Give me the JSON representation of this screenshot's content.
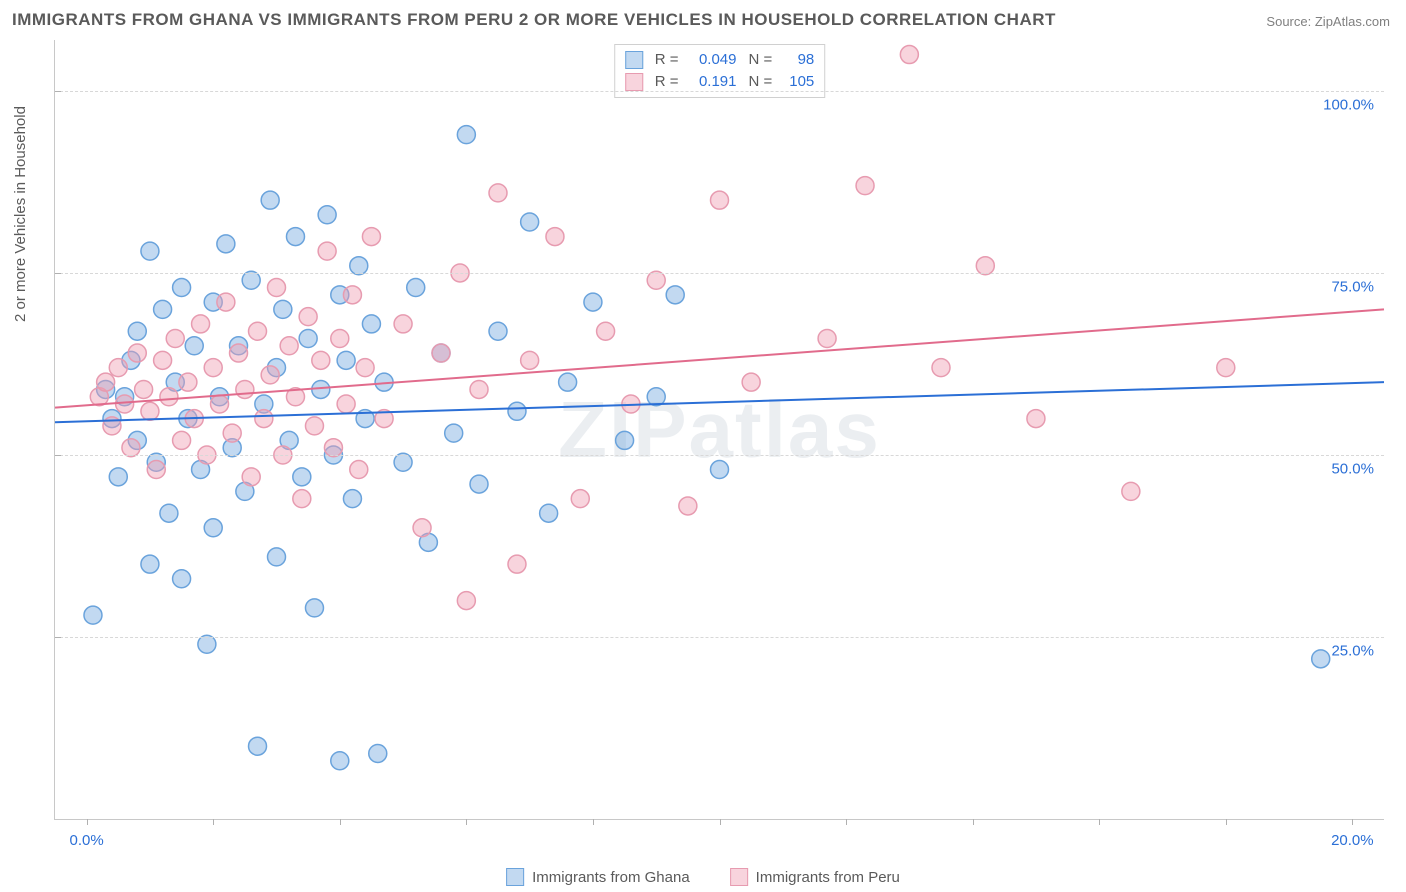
{
  "title": "IMMIGRANTS FROM GHANA VS IMMIGRANTS FROM PERU 2 OR MORE VEHICLES IN HOUSEHOLD CORRELATION CHART",
  "source_label": "Source:",
  "source_value": "ZipAtlas.com",
  "y_axis_title": "2 or more Vehicles in Household",
  "watermark": "ZIPatlas",
  "chart": {
    "type": "scatter",
    "x_domain": [
      -0.5,
      20.5
    ],
    "y_domain": [
      0,
      107
    ],
    "x_ticks": [
      0,
      2,
      4,
      6,
      8,
      10,
      12,
      14,
      16,
      18,
      20
    ],
    "x_tick_labels_shown": {
      "0": "0.0%",
      "20": "20.0%"
    },
    "y_gridlines": [
      25,
      50,
      75,
      100
    ],
    "y_tick_labels": {
      "25": "25.0%",
      "50": "50.0%",
      "75": "75.0%",
      "100": "100.0%"
    },
    "axis_label_color": "#2b6fd6",
    "grid_color": "#d8d8d8",
    "background_color": "#ffffff",
    "marker_radius": 9,
    "marker_stroke_width": 1.5,
    "line_width": 2
  },
  "series": [
    {
      "id": "ghana",
      "label": "Immigrants from Ghana",
      "fill_color": "rgba(120,170,225,0.45)",
      "stroke_color": "#6aa3dc",
      "line_color": "#2b6fd6",
      "R": "0.049",
      "N": "98",
      "trend": {
        "x1": -0.5,
        "y1": 54.5,
        "x2": 20.5,
        "y2": 60.0
      },
      "points": [
        [
          0.1,
          28
        ],
        [
          0.3,
          59
        ],
        [
          0.4,
          55
        ],
        [
          0.5,
          47
        ],
        [
          0.6,
          58
        ],
        [
          0.7,
          63
        ],
        [
          0.8,
          52
        ],
        [
          0.8,
          67
        ],
        [
          1.0,
          35
        ],
        [
          1.0,
          78
        ],
        [
          1.1,
          49
        ],
        [
          1.2,
          70
        ],
        [
          1.3,
          42
        ],
        [
          1.4,
          60
        ],
        [
          1.5,
          73
        ],
        [
          1.5,
          33
        ],
        [
          1.6,
          55
        ],
        [
          1.7,
          65
        ],
        [
          1.8,
          48
        ],
        [
          1.9,
          24
        ],
        [
          2.0,
          71
        ],
        [
          2.0,
          40
        ],
        [
          2.1,
          58
        ],
        [
          2.2,
          79
        ],
        [
          2.3,
          51
        ],
        [
          2.4,
          65
        ],
        [
          2.5,
          45
        ],
        [
          2.6,
          74
        ],
        [
          2.7,
          10
        ],
        [
          2.8,
          57
        ],
        [
          2.9,
          85
        ],
        [
          3.0,
          62
        ],
        [
          3.0,
          36
        ],
        [
          3.1,
          70
        ],
        [
          3.2,
          52
        ],
        [
          3.3,
          80
        ],
        [
          3.4,
          47
        ],
        [
          3.5,
          66
        ],
        [
          3.6,
          29
        ],
        [
          3.7,
          59
        ],
        [
          3.8,
          83
        ],
        [
          3.9,
          50
        ],
        [
          4.0,
          72
        ],
        [
          4.0,
          8
        ],
        [
          4.1,
          63
        ],
        [
          4.2,
          44
        ],
        [
          4.3,
          76
        ],
        [
          4.4,
          55
        ],
        [
          4.5,
          68
        ],
        [
          4.6,
          9
        ],
        [
          4.7,
          60
        ],
        [
          5.0,
          49
        ],
        [
          5.2,
          73
        ],
        [
          5.4,
          38
        ],
        [
          5.6,
          64
        ],
        [
          5.8,
          53
        ],
        [
          6.0,
          94
        ],
        [
          6.2,
          46
        ],
        [
          6.5,
          67
        ],
        [
          6.8,
          56
        ],
        [
          7.0,
          82
        ],
        [
          7.3,
          42
        ],
        [
          7.6,
          60
        ],
        [
          8.0,
          71
        ],
        [
          8.5,
          52
        ],
        [
          9.0,
          58
        ],
        [
          9.3,
          72
        ],
        [
          10.0,
          48
        ],
        [
          19.5,
          22
        ]
      ]
    },
    {
      "id": "peru",
      "label": "Immigrants from Peru",
      "fill_color": "rgba(240,160,180,0.45)",
      "stroke_color": "#e79bb0",
      "line_color": "#e16b8c",
      "R": "0.191",
      "N": "105",
      "trend": {
        "x1": -0.5,
        "y1": 56.5,
        "x2": 20.5,
        "y2": 70.0
      },
      "points": [
        [
          0.2,
          58
        ],
        [
          0.3,
          60
        ],
        [
          0.4,
          54
        ],
        [
          0.5,
          62
        ],
        [
          0.6,
          57
        ],
        [
          0.7,
          51
        ],
        [
          0.8,
          64
        ],
        [
          0.9,
          59
        ],
        [
          1.0,
          56
        ],
        [
          1.1,
          48
        ],
        [
          1.2,
          63
        ],
        [
          1.3,
          58
        ],
        [
          1.4,
          66
        ],
        [
          1.5,
          52
        ],
        [
          1.6,
          60
        ],
        [
          1.7,
          55
        ],
        [
          1.8,
          68
        ],
        [
          1.9,
          50
        ],
        [
          2.0,
          62
        ],
        [
          2.1,
          57
        ],
        [
          2.2,
          71
        ],
        [
          2.3,
          53
        ],
        [
          2.4,
          64
        ],
        [
          2.5,
          59
        ],
        [
          2.6,
          47
        ],
        [
          2.7,
          67
        ],
        [
          2.8,
          55
        ],
        [
          2.9,
          61
        ],
        [
          3.0,
          73
        ],
        [
          3.1,
          50
        ],
        [
          3.2,
          65
        ],
        [
          3.3,
          58
        ],
        [
          3.4,
          44
        ],
        [
          3.5,
          69
        ],
        [
          3.6,
          54
        ],
        [
          3.7,
          63
        ],
        [
          3.8,
          78
        ],
        [
          3.9,
          51
        ],
        [
          4.0,
          66
        ],
        [
          4.1,
          57
        ],
        [
          4.2,
          72
        ],
        [
          4.3,
          48
        ],
        [
          4.4,
          62
        ],
        [
          4.5,
          80
        ],
        [
          4.7,
          55
        ],
        [
          5.0,
          68
        ],
        [
          5.3,
          40
        ],
        [
          5.6,
          64
        ],
        [
          5.9,
          75
        ],
        [
          6.0,
          30
        ],
        [
          6.2,
          59
        ],
        [
          6.5,
          86
        ],
        [
          6.8,
          35
        ],
        [
          7.0,
          63
        ],
        [
          7.4,
          80
        ],
        [
          7.8,
          44
        ],
        [
          8.2,
          67
        ],
        [
          8.6,
          57
        ],
        [
          9.0,
          74
        ],
        [
          9.5,
          43
        ],
        [
          10.0,
          85
        ],
        [
          10.5,
          60
        ],
        [
          11.0,
          105
        ],
        [
          11.7,
          66
        ],
        [
          12.3,
          87
        ],
        [
          13.0,
          105
        ],
        [
          13.5,
          62
        ],
        [
          14.2,
          76
        ],
        [
          15.0,
          55
        ],
        [
          16.5,
          45
        ],
        [
          18.0,
          62
        ]
      ]
    }
  ],
  "legend_top": {
    "R_label": "R =",
    "N_label": "N ="
  }
}
